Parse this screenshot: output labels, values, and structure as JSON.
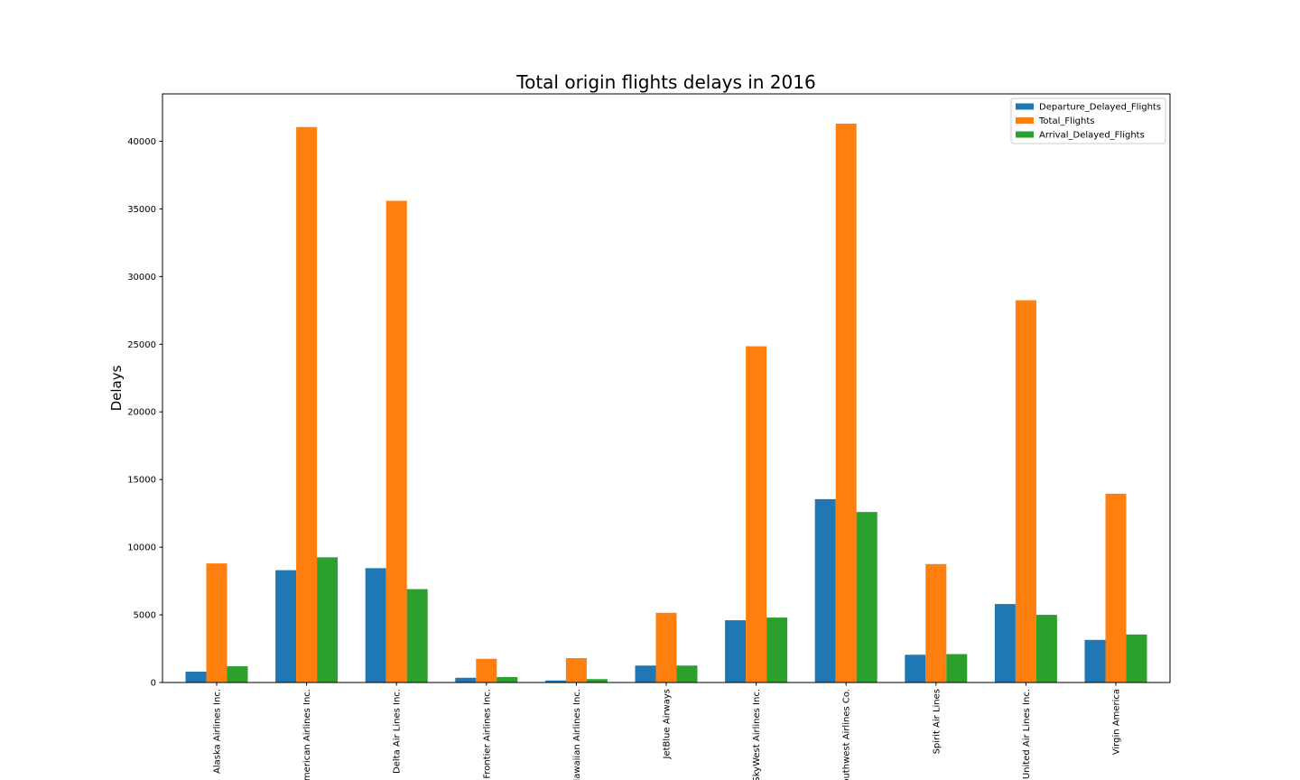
{
  "chart_data": {
    "type": "bar",
    "title": "Total origin flights delays in 2016",
    "xlabel": "",
    "ylabel": "Delays",
    "ylim": [
      0,
      43500
    ],
    "yticks": [
      0,
      5000,
      10000,
      15000,
      20000,
      25000,
      30000,
      35000,
      40000
    ],
    "categories": [
      "Alaska Airlines Inc.",
      "American Airlines Inc.",
      "Delta Air Lines Inc.",
      "Frontier Airlines Inc.",
      "Hawaiian Airlines Inc.",
      "JetBlue Airways",
      "SkyWest Airlines Inc.",
      "Southwest Airlines Co.",
      "Spirit Air Lines",
      "United Air Lines Inc.",
      "Virgin America"
    ],
    "series": [
      {
        "name": "Departure_Delayed_Flights",
        "color": "#1f77b4",
        "values": [
          800,
          8300,
          8450,
          350,
          150,
          1250,
          4600,
          13550,
          2050,
          5800,
          3150
        ]
      },
      {
        "name": "Total_Flights",
        "color": "#ff7f0e",
        "values": [
          8800,
          41050,
          35600,
          1750,
          1800,
          5150,
          24850,
          41300,
          8750,
          28250,
          13950
        ]
      },
      {
        "name": "Arrival_Delayed_Flights",
        "color": "#2ca02c",
        "values": [
          1200,
          9250,
          6900,
          400,
          250,
          1250,
          4800,
          12600,
          2100,
          5000,
          3550
        ]
      }
    ],
    "legend_position": "top-right",
    "grid": false
  }
}
